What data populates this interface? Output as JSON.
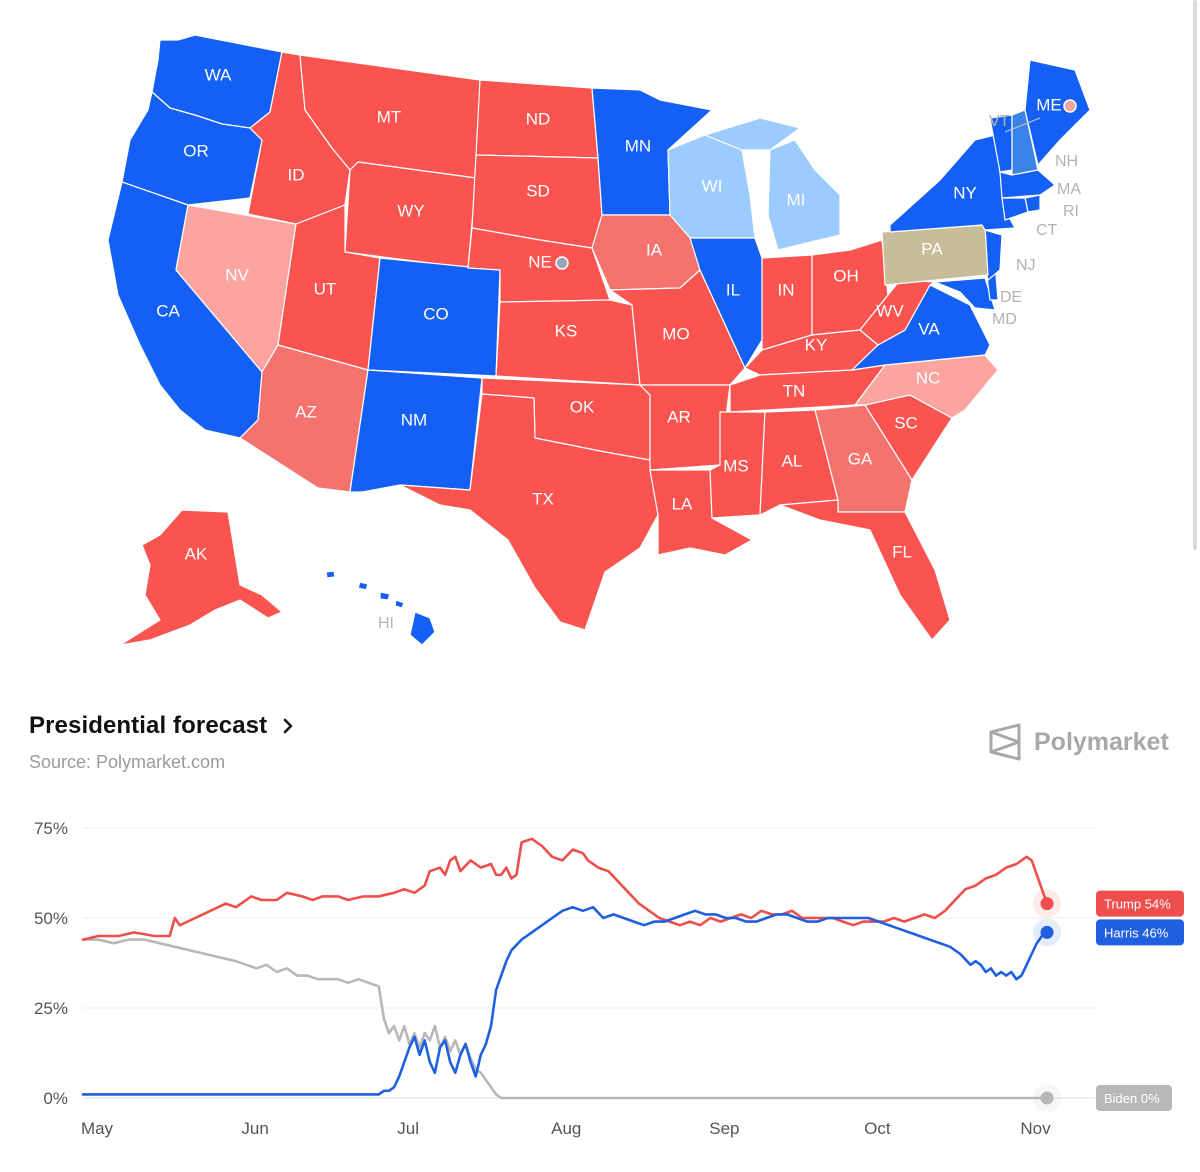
{
  "map": {
    "colors": {
      "solid_blue": "#1460f5",
      "lean_blue": "#3b82e8",
      "light_blue": "#9ccbff",
      "solid_red": "#fa5450",
      "lean_red": "#f5736e",
      "light_red": "#fba4a0",
      "tossup": "#c8bd9a"
    },
    "labels": {
      "WA": "WA",
      "OR": "OR",
      "CA": "CA",
      "NV": "NV",
      "ID": "ID",
      "MT": "MT",
      "WY": "WY",
      "UT": "UT",
      "AZ": "AZ",
      "CO": "CO",
      "NM": "NM",
      "ND": "ND",
      "SD": "SD",
      "NE": "NE",
      "KS": "KS",
      "OK": "OK",
      "TX": "TX",
      "MN": "MN",
      "IA": "IA",
      "MO": "MO",
      "AR": "AR",
      "LA": "LA",
      "WI": "WI",
      "IL": "IL",
      "MI": "MI",
      "IN": "IN",
      "OH": "OH",
      "KY": "KY",
      "TN": "TN",
      "MS": "MS",
      "AL": "AL",
      "GA": "GA",
      "FL": "FL",
      "SC": "SC",
      "NC": "NC",
      "VA": "VA",
      "WV": "WV",
      "PA": "PA",
      "NY": "NY",
      "ME": "ME",
      "AK": "AK",
      "VT": "VT",
      "NH": "NH",
      "MA": "MA",
      "RI": "RI",
      "CT": "CT",
      "NJ": "NJ",
      "DE": "DE",
      "MD": "MD",
      "HI": "HI"
    }
  },
  "header": {
    "title": "Presidential forecast",
    "source": "Source: Polymarket.com",
    "brand": "Polymarket",
    "brand_icon": "polymarket-logo-icon",
    "chevron_icon": "chevron-right-icon"
  },
  "chart_data": {
    "type": "line",
    "x_tick_labels": [
      "May",
      "Jun",
      "Jul",
      "Aug",
      "Sep",
      "Oct",
      "Nov"
    ],
    "y_tick_labels": [
      "75%",
      "50%",
      "25%",
      "0%"
    ],
    "ylim": [
      0,
      75
    ],
    "y_ticks": [
      0,
      25,
      50,
      75
    ],
    "grid": true,
    "x_ticks_day": [
      0,
      31,
      61,
      92,
      123,
      153,
      184
    ],
    "x_range_day": [
      0,
      189
    ],
    "series": [
      {
        "name": "Trump",
        "label": "Trump 54%",
        "color": "#ef4f4c",
        "final": 54,
        "points": [
          [
            0,
            44
          ],
          [
            3,
            45
          ],
          [
            7,
            45
          ],
          [
            10,
            46
          ],
          [
            14,
            45
          ],
          [
            17,
            45
          ],
          [
            18,
            50
          ],
          [
            19,
            48
          ],
          [
            22,
            50
          ],
          [
            25,
            52
          ],
          [
            28,
            54
          ],
          [
            30,
            53
          ],
          [
            33,
            56
          ],
          [
            35,
            55
          ],
          [
            38,
            55
          ],
          [
            40,
            57
          ],
          [
            43,
            56
          ],
          [
            45,
            55
          ],
          [
            47,
            56
          ],
          [
            50,
            56
          ],
          [
            52,
            55
          ],
          [
            55,
            56
          ],
          [
            58,
            56
          ],
          [
            61,
            57
          ],
          [
            63,
            58
          ],
          [
            65,
            57
          ],
          [
            67,
            59
          ],
          [
            68,
            63
          ],
          [
            70,
            64
          ],
          [
            71,
            62
          ],
          [
            72,
            66
          ],
          [
            73,
            67
          ],
          [
            74,
            63
          ],
          [
            76,
            66
          ],
          [
            78,
            64
          ],
          [
            80,
            65
          ],
          [
            81,
            62
          ],
          [
            82,
            62
          ],
          [
            83,
            64
          ],
          [
            84,
            61
          ],
          [
            85,
            62
          ],
          [
            86,
            71
          ],
          [
            88,
            72
          ],
          [
            90,
            70
          ],
          [
            92,
            67
          ],
          [
            94,
            66
          ],
          [
            96,
            69
          ],
          [
            98,
            68
          ],
          [
            99,
            66
          ],
          [
            101,
            64
          ],
          [
            103,
            63
          ],
          [
            105,
            60
          ],
          [
            107,
            57
          ],
          [
            109,
            54
          ],
          [
            111,
            52
          ],
          [
            113,
            50
          ],
          [
            115,
            49
          ],
          [
            117,
            48
          ],
          [
            119,
            49
          ],
          [
            121,
            48
          ],
          [
            123,
            50
          ],
          [
            125,
            49
          ],
          [
            127,
            50
          ],
          [
            129,
            51
          ],
          [
            131,
            50
          ],
          [
            133,
            52
          ],
          [
            135,
            51
          ],
          [
            137,
            51
          ],
          [
            139,
            52
          ],
          [
            141,
            50
          ],
          [
            143,
            50
          ],
          [
            145,
            50
          ],
          [
            147,
            50
          ],
          [
            149,
            49
          ],
          [
            151,
            48
          ],
          [
            153,
            49
          ],
          [
            155,
            49
          ],
          [
            157,
            49
          ],
          [
            159,
            50
          ],
          [
            161,
            49
          ],
          [
            163,
            50
          ],
          [
            165,
            51
          ],
          [
            167,
            50
          ],
          [
            169,
            52
          ],
          [
            171,
            55
          ],
          [
            173,
            58
          ],
          [
            175,
            59
          ],
          [
            177,
            61
          ],
          [
            179,
            62
          ],
          [
            181,
            64
          ],
          [
            183,
            65
          ],
          [
            185,
            67
          ],
          [
            186,
            66
          ],
          [
            187,
            62
          ],
          [
            188,
            58
          ],
          [
            189,
            54
          ]
        ]
      },
      {
        "name": "Harris",
        "label": "Harris 46%",
        "color": "#1f5fe0",
        "final": 46,
        "points": [
          [
            0,
            1
          ],
          [
            10,
            1
          ],
          [
            20,
            1
          ],
          [
            30,
            1
          ],
          [
            40,
            1
          ],
          [
            50,
            1
          ],
          [
            58,
            1
          ],
          [
            59,
            2
          ],
          [
            60,
            2
          ],
          [
            61,
            3
          ],
          [
            62,
            6
          ],
          [
            63,
            10
          ],
          [
            64,
            14
          ],
          [
            65,
            17
          ],
          [
            66,
            12
          ],
          [
            67,
            16
          ],
          [
            68,
            10
          ],
          [
            69,
            7
          ],
          [
            70,
            14
          ],
          [
            71,
            16
          ],
          [
            72,
            10
          ],
          [
            73,
            7
          ],
          [
            74,
            12
          ],
          [
            75,
            15
          ],
          [
            76,
            10
          ],
          [
            77,
            6
          ],
          [
            78,
            12
          ],
          [
            79,
            15
          ],
          [
            80,
            20
          ],
          [
            81,
            30
          ],
          [
            82,
            34
          ],
          [
            83,
            38
          ],
          [
            84,
            41
          ],
          [
            86,
            44
          ],
          [
            88,
            46
          ],
          [
            90,
            48
          ],
          [
            92,
            50
          ],
          [
            94,
            52
          ],
          [
            96,
            53
          ],
          [
            98,
            52
          ],
          [
            100,
            53
          ],
          [
            102,
            50
          ],
          [
            104,
            51
          ],
          [
            106,
            50
          ],
          [
            108,
            49
          ],
          [
            110,
            48
          ],
          [
            112,
            49
          ],
          [
            114,
            49
          ],
          [
            116,
            50
          ],
          [
            118,
            51
          ],
          [
            120,
            52
          ],
          [
            122,
            51
          ],
          [
            124,
            51
          ],
          [
            126,
            50
          ],
          [
            128,
            50
          ],
          [
            130,
            49
          ],
          [
            132,
            49
          ],
          [
            134,
            50
          ],
          [
            136,
            51
          ],
          [
            138,
            51
          ],
          [
            140,
            50
          ],
          [
            142,
            49
          ],
          [
            144,
            49
          ],
          [
            146,
            50
          ],
          [
            148,
            50
          ],
          [
            150,
            50
          ],
          [
            152,
            50
          ],
          [
            154,
            50
          ],
          [
            156,
            49
          ],
          [
            158,
            48
          ],
          [
            160,
            47
          ],
          [
            162,
            46
          ],
          [
            164,
            45
          ],
          [
            166,
            44
          ],
          [
            168,
            43
          ],
          [
            170,
            42
          ],
          [
            172,
            40
          ],
          [
            174,
            37
          ],
          [
            175,
            38
          ],
          [
            176,
            37
          ],
          [
            177,
            35
          ],
          [
            178,
            36
          ],
          [
            179,
            34
          ],
          [
            180,
            35
          ],
          [
            181,
            34
          ],
          [
            182,
            35
          ],
          [
            183,
            33
          ],
          [
            184,
            34
          ],
          [
            185,
            37
          ],
          [
            186,
            40
          ],
          [
            187,
            43
          ],
          [
            188,
            45
          ],
          [
            189,
            46
          ]
        ]
      },
      {
        "name": "Biden",
        "label": "Biden 0%",
        "color": "#b8b8b8",
        "final": 0,
        "points": [
          [
            0,
            44
          ],
          [
            3,
            44
          ],
          [
            6,
            43
          ],
          [
            9,
            44
          ],
          [
            12,
            44
          ],
          [
            15,
            43
          ],
          [
            18,
            42
          ],
          [
            21,
            41
          ],
          [
            24,
            40
          ],
          [
            27,
            39
          ],
          [
            30,
            38
          ],
          [
            32,
            37
          ],
          [
            34,
            36
          ],
          [
            36,
            37
          ],
          [
            38,
            35
          ],
          [
            40,
            36
          ],
          [
            42,
            34
          ],
          [
            44,
            34
          ],
          [
            46,
            33
          ],
          [
            48,
            33
          ],
          [
            50,
            33
          ],
          [
            52,
            32
          ],
          [
            54,
            33
          ],
          [
            56,
            32
          ],
          [
            58,
            31
          ],
          [
            59,
            22
          ],
          [
            60,
            18
          ],
          [
            61,
            20
          ],
          [
            62,
            16
          ],
          [
            63,
            20
          ],
          [
            64,
            15
          ],
          [
            65,
            18
          ],
          [
            66,
            14
          ],
          [
            67,
            18
          ],
          [
            68,
            16
          ],
          [
            69,
            20
          ],
          [
            70,
            14
          ],
          [
            71,
            17
          ],
          [
            72,
            13
          ],
          [
            73,
            16
          ],
          [
            74,
            12
          ],
          [
            75,
            15
          ],
          [
            76,
            11
          ],
          [
            77,
            8
          ],
          [
            78,
            7
          ],
          [
            79,
            5
          ],
          [
            80,
            3
          ],
          [
            81,
            1
          ],
          [
            82,
            0
          ],
          [
            100,
            0
          ],
          [
            120,
            0
          ],
          [
            140,
            0
          ],
          [
            160,
            0
          ],
          [
            180,
            0
          ],
          [
            189,
            0
          ]
        ]
      }
    ]
  }
}
